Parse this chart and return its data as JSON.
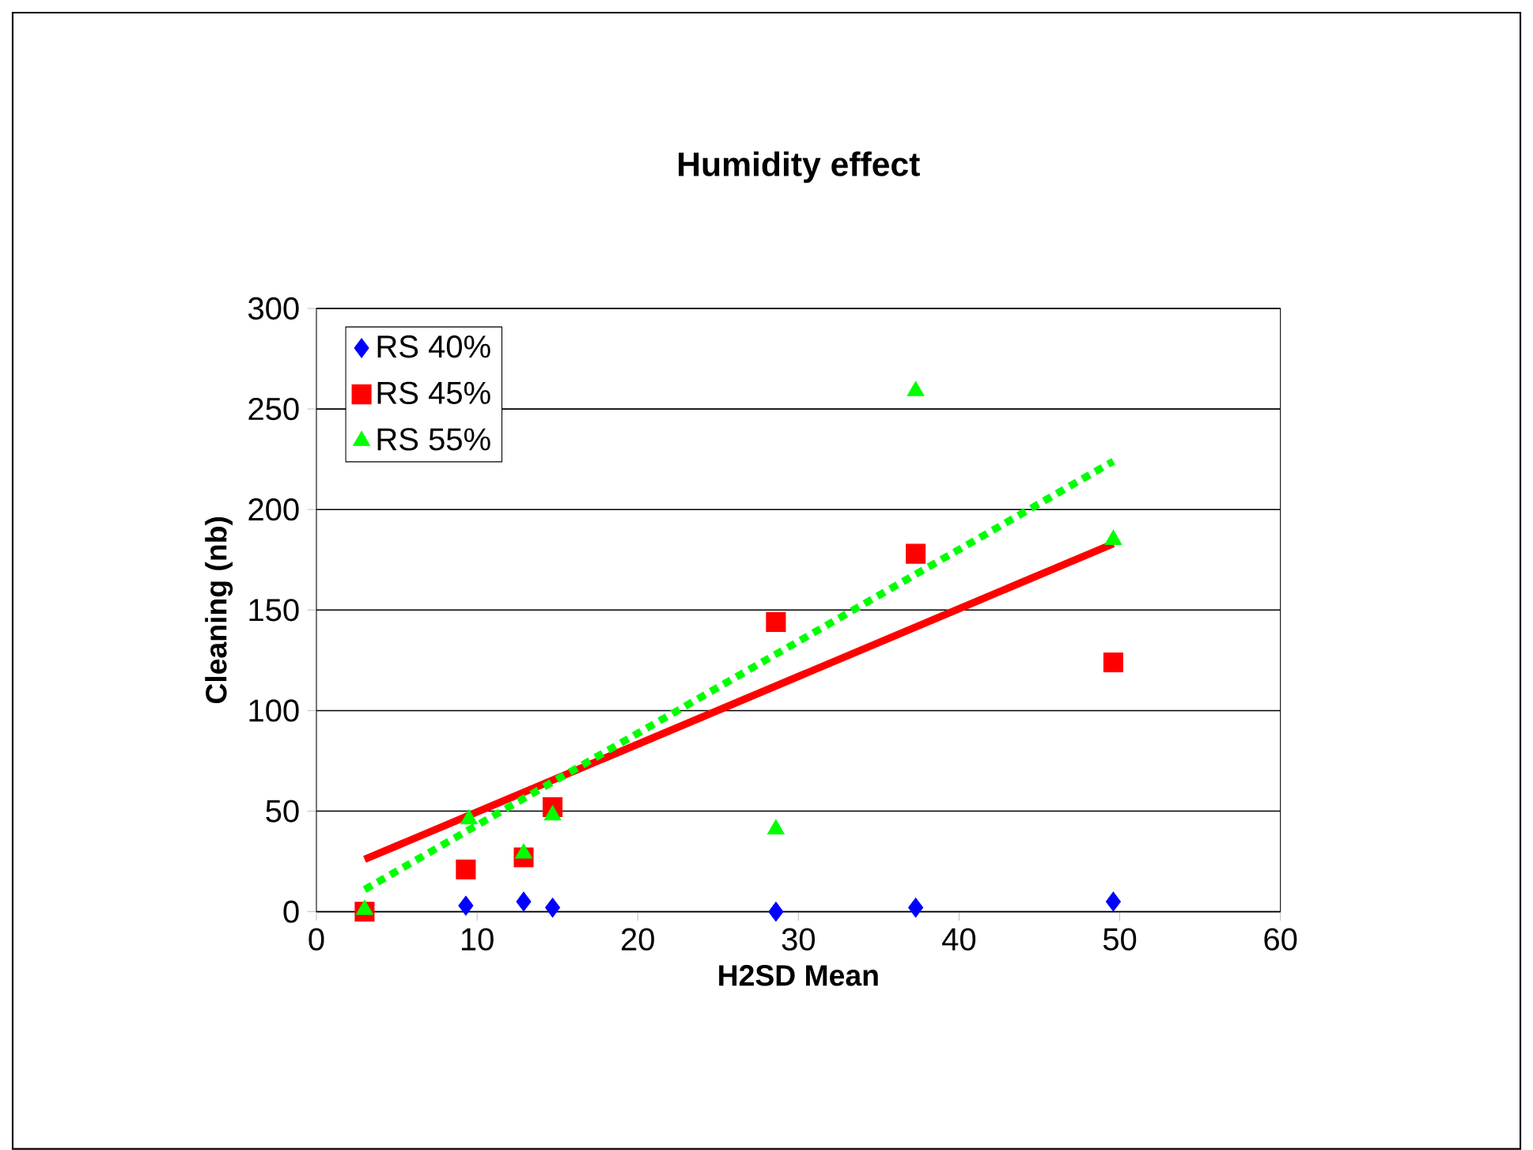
{
  "chart_data": {
    "type": "scatter",
    "title": "Humidity effect",
    "xlabel": "H2SD Mean",
    "ylabel": "Cleaning (nb)",
    "xlim": [
      0,
      60
    ],
    "xticks": [
      0,
      10,
      20,
      30,
      40,
      50,
      60
    ],
    "ylim": [
      0,
      300
    ],
    "yticks": [
      0,
      50,
      100,
      150,
      200,
      250,
      300
    ],
    "grid": "y",
    "legend": "top left",
    "series": [
      {
        "name": "RS 40%",
        "color": "#0000ff",
        "marker": "diamond",
        "x": [
          9.3,
          12.9,
          14.7,
          28.6,
          37.3,
          49.6
        ],
        "values": [
          3,
          5,
          2,
          0,
          2,
          5
        ]
      },
      {
        "name": "RS 45%",
        "color": "#ff0000",
        "marker": "square",
        "x": [
          3,
          9.3,
          12.9,
          14.7,
          28.6,
          37.3,
          49.6
        ],
        "values": [
          0,
          21,
          27,
          52,
          144,
          178,
          124
        ]
      },
      {
        "name": "RS 55%",
        "color": "#00ff00",
        "marker": "triangle",
        "x": [
          3,
          9.5,
          12.9,
          14.7,
          28.6,
          37.3,
          49.6
        ],
        "values": [
          1,
          46,
          29,
          48,
          41,
          259,
          185
        ]
      },
      {
        "type": "line",
        "color": "#ff0000",
        "line_style": "solid",
        "marker": "none",
        "x": [
          3,
          49.6
        ],
        "values": [
          26,
          183
        ]
      },
      {
        "type": "line",
        "color": "#00ff00",
        "line_style": "dotted",
        "marker": "none",
        "x": [
          3,
          49.6
        ],
        "values": [
          11,
          224
        ]
      }
    ]
  }
}
